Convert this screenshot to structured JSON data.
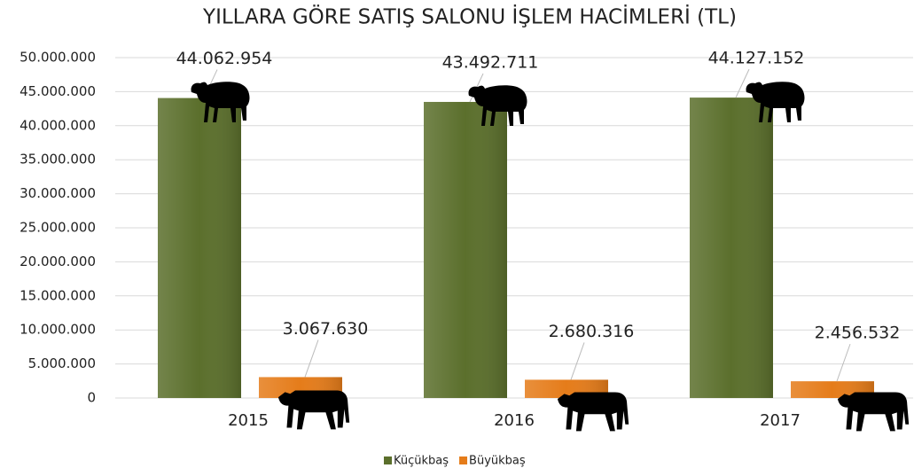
{
  "chart_data": {
    "type": "bar",
    "title": "YILLARA GÖRE SATIŞ SALONU İŞLEM HACİMLERİ (TL)",
    "categories": [
      "2015",
      "2016",
      "2017"
    ],
    "series": [
      {
        "name": "Küçükbaş",
        "color": "#5b6f2c",
        "values": [
          44062954,
          43492711,
          44127152
        ],
        "value_labels": [
          "44.062.954",
          "43.492.711",
          "44.127.152"
        ]
      },
      {
        "name": "Büyükbaş",
        "color": "#e57c1a",
        "values": [
          3067630,
          2680316,
          2456532
        ],
        "value_labels": [
          "3.067.630",
          "2.680.316",
          "2.456.532"
        ]
      }
    ],
    "ylim": [
      0,
      50000000
    ],
    "yticks": [
      0,
      {
        "value": 5000000,
        "label": "5.000.000"
      },
      {
        "value": 10000000,
        "label": "10.000.000"
      },
      {
        "value": 15000000,
        "label": "15.000.000"
      },
      {
        "value": 20000000,
        "label": "20.000.000"
      },
      {
        "value": 25000000,
        "label": "25.000.000"
      },
      {
        "value": 30000000,
        "label": "30.000.000"
      },
      {
        "value": 35000000,
        "label": "35.000.000"
      },
      {
        "value": 40000000,
        "label": "40.000.000"
      },
      {
        "value": 45000000,
        "label": "45.000.000"
      },
      {
        "value": 50000000,
        "label": "50.000.000"
      }
    ],
    "grid": true,
    "legend": "bottom"
  }
}
